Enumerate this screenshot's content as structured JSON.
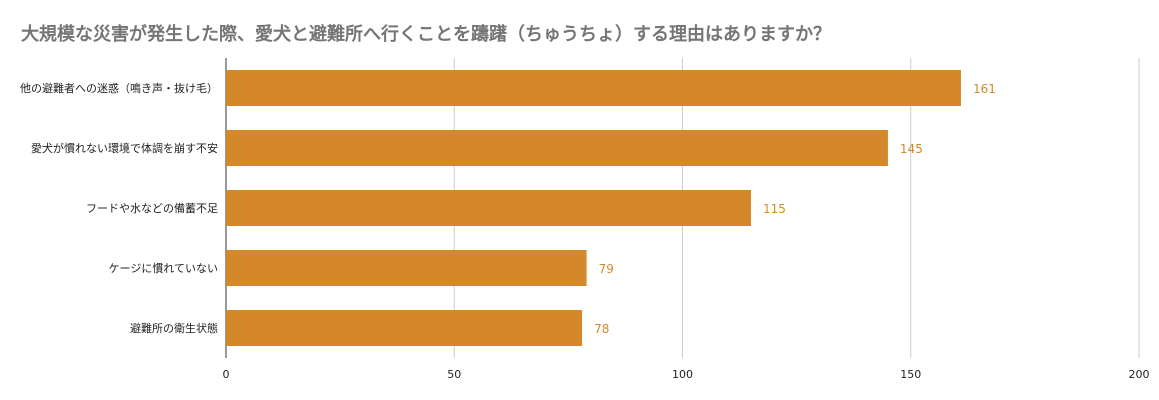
{
  "chart_data": {
    "type": "bar",
    "orientation": "horizontal",
    "title": "大規模な災害が発生した際、愛犬と避難所へ行くことを躊躇（ちゅうちょ）する理由はありますか？",
    "categories": [
      "他の避難者への迷惑（鳴き声・抜け毛）",
      "愛犬が慣れない環境で体調を崩す不安",
      "フードや水などの備蓄不足",
      "ケージに慣れていない",
      "避難所の衛生状態"
    ],
    "values": [
      161,
      145,
      115,
      79,
      78
    ],
    "xlim": [
      0,
      200
    ],
    "x_ticks": [
      0,
      50,
      100,
      150,
      200
    ],
    "grid": true,
    "legend": "none",
    "data_labels": true,
    "colors": {
      "bar": "#d4882a",
      "data_label": "#d4882a",
      "grid": "#cccccc",
      "axis": "#333333",
      "title": "#757575",
      "text": "#222222"
    }
  }
}
